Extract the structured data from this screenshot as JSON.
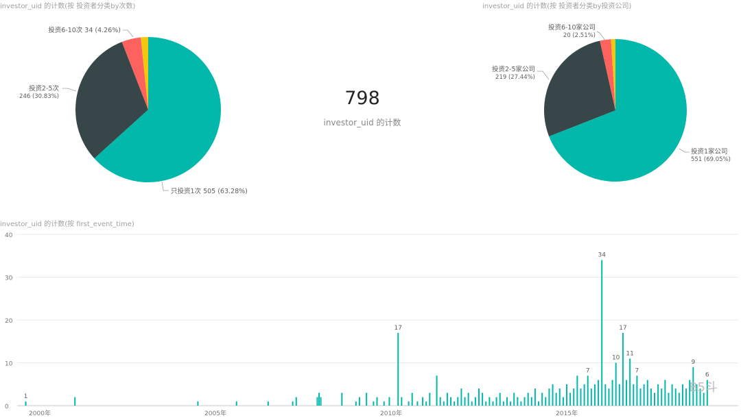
{
  "titles": {
    "pie_left": "investor_uid 的计数(按 投资者分类by次数)",
    "pie_right": "investor_uid 的计数(按 投资者分类by投资公司)",
    "column": "investor_uid 的计数(按 first_event_time)"
  },
  "kpi": {
    "value": "798",
    "label": "investor_uid 的计数"
  },
  "watermark": "B5斗",
  "colors": {
    "teal": "#01b8aa",
    "dark": "#374649",
    "red": "#fd625e",
    "yellow": "#f2c80f",
    "grid": "#ebebeb"
  },
  "chart_data": [
    {
      "type": "pie",
      "title": "investor_uid 的计数(按 投资者分类by次数)",
      "slices": [
        {
          "label": "只投资1次",
          "value": 505,
          "percent": "63.28%",
          "color": "#01b8aa"
        },
        {
          "label": "投资2-5次",
          "value": 246,
          "percent": "30.83%",
          "color": "#374649"
        },
        {
          "label": "投资6-10次",
          "value": 34,
          "percent": "4.26%",
          "color": "#fd625e"
        },
        {
          "label": "",
          "value": 13,
          "percent": "",
          "color": "#f2c80f"
        }
      ],
      "labels": [
        {
          "line1": "只投资1次 505 (63.28%)",
          "line2": ""
        },
        {
          "line1": "投资2-5次",
          "line2": "246 (30.83%)"
        },
        {
          "line1": "投资6-10次 34 (4.26%)",
          "line2": ""
        }
      ]
    },
    {
      "type": "pie",
      "title": "investor_uid 的计数(按 投资者分类by投资公司)",
      "slices": [
        {
          "label": "投资1家公司",
          "value": 551,
          "percent": "69.05%",
          "color": "#01b8aa"
        },
        {
          "label": "投资2-5家公司",
          "value": 219,
          "percent": "27.44%",
          "color": "#374649"
        },
        {
          "label": "投资6-10家公司",
          "value": 20,
          "percent": "2.51%",
          "color": "#fd625e"
        },
        {
          "label": "",
          "value": 8,
          "percent": "",
          "color": "#f2c80f"
        }
      ],
      "labels": [
        {
          "line1": "投资1家公司",
          "line2": "551 (69.05%)"
        },
        {
          "line1": "投资2-5家公司",
          "line2": "219 (27.44%)"
        },
        {
          "line1": "投资6-10家公司",
          "line2": "20 (2.51%)"
        }
      ]
    },
    {
      "type": "bar",
      "title": "investor_uid 的计数(按 first_event_time)",
      "xlabel": "",
      "ylabel": "",
      "ylim": [
        0,
        40
      ],
      "yticks": [
        "0",
        "10",
        "20",
        "30",
        "40"
      ],
      "xtick_labels": [
        "2000年",
        "2005年",
        "2010年",
        "2015年"
      ],
      "xtick_years": [
        2000,
        2005,
        2010,
        2015
      ],
      "x": [
        1999.6,
        2001.0,
        2004.5,
        2005.6,
        2006.5,
        2007.2,
        2007.3,
        2007.9,
        2007.95,
        2008.0,
        2008.6,
        2009.0,
        2009.1,
        2009.3,
        2009.5,
        2009.6,
        2009.8,
        2009.95,
        2010.2,
        2010.3,
        2010.5,
        2010.6,
        2010.75,
        2010.9,
        2011.0,
        2011.1,
        2011.3,
        2011.4,
        2011.5,
        2011.6,
        2011.7,
        2011.8,
        2011.9,
        2012.0,
        2012.1,
        2012.2,
        2012.3,
        2012.4,
        2012.5,
        2012.6,
        2012.7,
        2012.8,
        2012.9,
        2013.0,
        2013.1,
        2013.2,
        2013.3,
        2013.4,
        2013.5,
        2013.6,
        2013.7,
        2013.8,
        2013.9,
        2014.0,
        2014.1,
        2014.2,
        2014.3,
        2014.4,
        2014.5,
        2014.6,
        2014.7,
        2014.8,
        2014.9,
        2015.0,
        2015.1,
        2015.2,
        2015.3,
        2015.4,
        2015.5,
        2015.6,
        2015.7,
        2015.8,
        2015.9,
        2016.0,
        2016.1,
        2016.2,
        2016.3,
        2016.4,
        2016.5,
        2016.6,
        2016.7,
        2016.8,
        2016.9,
        2017.0,
        2017.1,
        2017.2,
        2017.3,
        2017.4,
        2017.5,
        2017.6,
        2017.7,
        2017.8,
        2017.9,
        2018.0,
        2018.1,
        2018.2,
        2018.3,
        2018.4,
        2018.5,
        2018.6,
        2018.7,
        2018.8,
        2018.9,
        2019.0
      ],
      "values": [
        1,
        2,
        1,
        1,
        1,
        1,
        2,
        2,
        3,
        2,
        3,
        1,
        2,
        3,
        1,
        2,
        1,
        2,
        17,
        2,
        1,
        3,
        1,
        2,
        1,
        3,
        7,
        2,
        1,
        3,
        2,
        1,
        2,
        4,
        2,
        3,
        1,
        2,
        4,
        3,
        1,
        2,
        1,
        2,
        3,
        1,
        2,
        1,
        3,
        2,
        1,
        2,
        3,
        2,
        4,
        1,
        3,
        2,
        4,
        5,
        3,
        4,
        2,
        5,
        3,
        4,
        7,
        4,
        5,
        7,
        4,
        5,
        6,
        34,
        5,
        4,
        6,
        10,
        5,
        17,
        6,
        11,
        5,
        7,
        4,
        5,
        6,
        4,
        3,
        5,
        4,
        6,
        3,
        5,
        4,
        3,
        5,
        4,
        6,
        9,
        5,
        4,
        3,
        6
      ],
      "data_labels": [
        {
          "x": 1999.6,
          "text": "1"
        },
        {
          "x": 2010.2,
          "text": "17"
        },
        {
          "x": 2015.6,
          "text": "7"
        },
        {
          "x": 2016.0,
          "text": "34"
        },
        {
          "x": 2016.4,
          "text": "10"
        },
        {
          "x": 2016.6,
          "text": "17"
        },
        {
          "x": 2016.8,
          "text": "11"
        },
        {
          "x": 2017.0,
          "text": "7"
        },
        {
          "x": 2018.6,
          "text": "9"
        },
        {
          "x": 2019.0,
          "text": "6"
        }
      ]
    }
  ]
}
